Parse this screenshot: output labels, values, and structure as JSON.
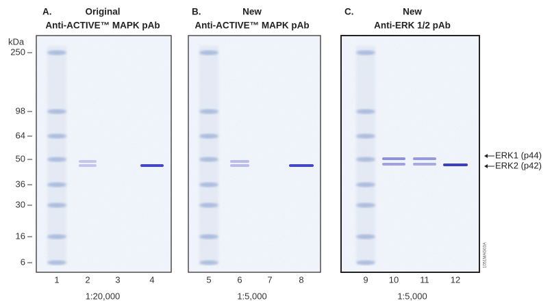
{
  "panels": [
    {
      "letter": "A.",
      "title": [
        "Original",
        "Anti-ACTIVE™ MAPK pAb"
      ],
      "lanes": [
        "1",
        "2",
        "3",
        "4"
      ],
      "dilution": "1:20,000"
    },
    {
      "letter": "B.",
      "title": [
        "New",
        "Anti-ACTIVE™ MAPK pAb"
      ],
      "lanes": [
        "5",
        "6",
        "7",
        "8"
      ],
      "dilution": "1:5,000"
    },
    {
      "letter": "C.",
      "title": [
        "New",
        "Anti-ERK 1/2 pAb"
      ],
      "lanes": [
        "9",
        "10",
        "11",
        "12"
      ],
      "dilution": "1:5,000"
    }
  ],
  "kda_label": "kDa",
  "markers": [
    "250",
    "98",
    "64",
    "50",
    "36",
    "30",
    "16",
    "6"
  ],
  "band_labels": [
    "ERK1 (p44)",
    "ERK2 (p42)"
  ],
  "figure_code": "1051MAG03A"
}
